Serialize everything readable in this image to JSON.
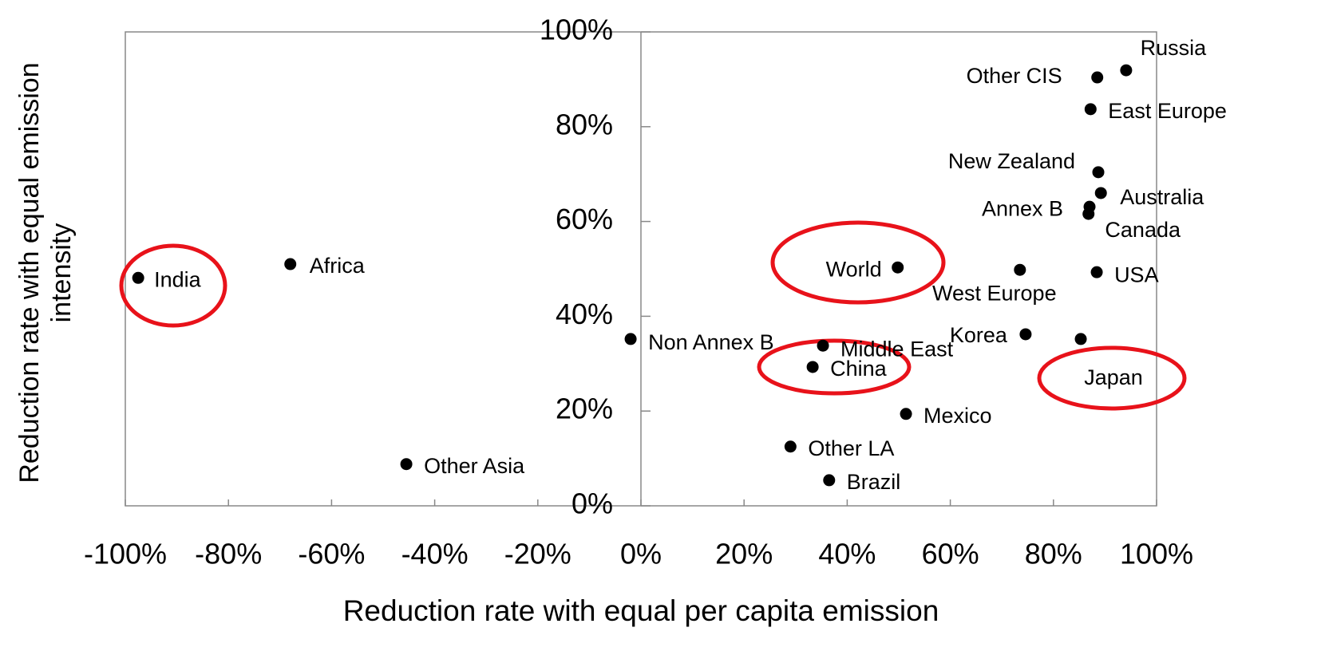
{
  "chart_data": {
    "type": "scatter",
    "xlabel": "Reduction rate with equal per capita emission",
    "ylabel": "Reduction rate with equal emission intensity",
    "labels": [
      "India",
      "Africa",
      "Other Asia",
      "Non Annex B",
      "Middle East",
      "China",
      "World",
      "Other LA",
      "Brazil",
      "Mexico",
      "West Europe",
      "Korea",
      "Japan",
      "USA",
      "Canada",
      "Annex B",
      "Australia",
      "New Zealand",
      "East Europe",
      "Other CIS",
      "Russia"
    ],
    "x": [
      -97.5,
      -68,
      -45.5,
      -2,
      35.3,
      33.3,
      49.8,
      29,
      36.5,
      51.4,
      73.5,
      74.6,
      85.3,
      88.4,
      86.8,
      87,
      89.2,
      88.7,
      87.2,
      88.5,
      94.1
    ],
    "values": [
      48.1,
      51,
      8.8,
      35.2,
      33.8,
      29.3,
      50.3,
      12.5,
      5.4,
      19.4,
      49.8,
      36.2,
      35.2,
      49.3,
      61.6,
      63.1,
      66,
      70.4,
      83.7,
      90.4,
      91.9
    ],
    "color": "#000000",
    "xlim": [
      -100,
      100
    ],
    "xticks": [
      {
        "value": -100,
        "label": "-100%"
      },
      {
        "value": -80,
        "label": "-80%"
      },
      {
        "value": -60,
        "label": "-60%"
      },
      {
        "value": -40,
        "label": "-40%"
      },
      {
        "value": -20,
        "label": "-20%"
      },
      {
        "value": 0,
        "label": "0%"
      },
      {
        "value": 20,
        "label": "20%"
      },
      {
        "value": 40,
        "label": "40%"
      },
      {
        "value": 60,
        "label": "60%"
      },
      {
        "value": 80,
        "label": "80%"
      },
      {
        "value": 100,
        "label": "100%"
      }
    ],
    "ylim": [
      0,
      100
    ],
    "yticks": [
      {
        "value": 0,
        "label": "0%"
      },
      {
        "value": 20,
        "label": "20%"
      },
      {
        "value": 40,
        "label": "40%"
      },
      {
        "value": 60,
        "label": "60%"
      },
      {
        "value": 80,
        "label": "80%"
      },
      {
        "value": 100,
        "label": "100%"
      }
    ],
    "grid": false
  }
}
